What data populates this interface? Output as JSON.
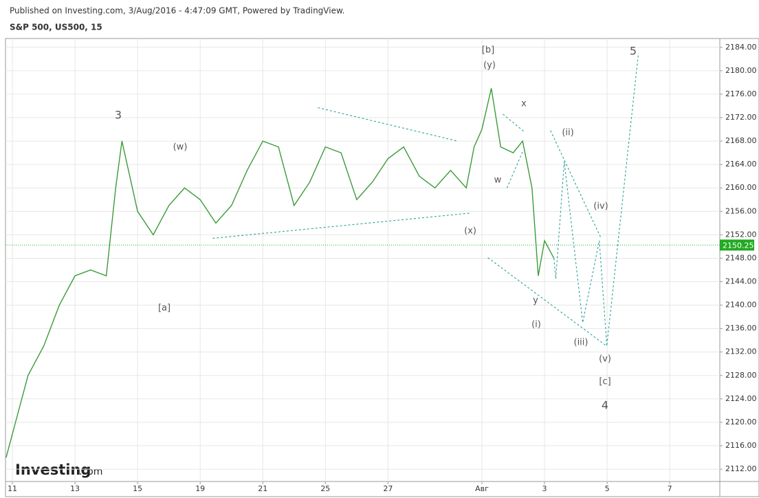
{
  "header": {
    "published": "Published on Investing.com, 3/Aug/2016 - 4:47:09 GMT, Powered by TradingView.",
    "symbol": "S&P 500, US500, 15",
    "logo": "Investing",
    "logo_suffix": ".com"
  },
  "chart_data": {
    "type": "line",
    "x": [
      -0.2,
      0,
      0.5,
      1,
      1.5,
      2,
      2.5,
      3,
      3.3,
      3.5,
      4,
      4.5,
      5,
      5.5,
      6,
      6.5,
      7,
      7.5,
      8,
      8.5,
      9,
      9.5,
      10,
      10.5,
      11,
      11.5,
      12,
      12.5,
      13,
      13.5,
      14,
      14.5,
      14.75,
      15,
      15.3,
      15.6,
      16,
      16.3,
      16.6,
      16.8,
      17,
      17.2,
      17.3
    ],
    "series": [
      {
        "color": "#3a9a3a",
        "values": [
          2114,
          2118,
          2128,
          2133,
          2140,
          2145,
          2146,
          2145,
          2160,
          2168,
          2156,
          2152,
          2157,
          2160,
          2158,
          2154,
          2157,
          2163,
          2168,
          2167,
          2157,
          2161,
          2167,
          2166,
          2158,
          2161,
          2165,
          2167,
          2162,
          2160,
          2163,
          2160,
          2167,
          2170,
          2177,
          2167,
          2166,
          2168,
          2160,
          2145,
          2151,
          2149,
          2148
        ]
      }
    ],
    "last_price": 2150.25,
    "last_price_color": "#22aa22",
    "projections": [
      {
        "x": [
          17.3,
          17.36,
          17.63,
          18.22,
          18.75,
          18.99,
          20.0
        ],
        "y": [
          2148,
          2144.5,
          2164.5,
          2137,
          2151,
          2133,
          2183
        ]
      },
      {
        "x": [
          9.76,
          14.22
        ],
        "y": [
          2173.7,
          2168.0
        ]
      },
      {
        "x": [
          6.4,
          14.62
        ],
        "y": [
          2151.4,
          2155.7
        ]
      },
      {
        "x": [
          15.67,
          16.35
        ],
        "y": [
          2172.6,
          2169.6
        ]
      },
      {
        "x": [
          15.8,
          16.31
        ],
        "y": [
          2160.0,
          2166.3
        ]
      },
      {
        "x": [
          15.19,
          18.99
        ],
        "y": [
          2148.1,
          2133.0
        ]
      },
      {
        "x": [
          17.19,
          18.79
        ],
        "y": [
          2169.8,
          2151.6
        ]
      }
    ],
    "projection_color": "#2aa198",
    "annotations": [
      "3",
      "(w)",
      "[a]",
      "[b]",
      "(y)",
      "x",
      "w",
      "(x)",
      "y",
      "(i)",
      "(ii)",
      "(iv)",
      "(iii)",
      "(v)",
      "[c]",
      "4",
      "5"
    ],
    "xlim": [
      -0.22,
      22.6
    ],
    "xticks": [
      {
        "value": 0,
        "label": "11"
      },
      {
        "value": 2,
        "label": "13"
      },
      {
        "value": 4,
        "label": "15"
      },
      {
        "value": 6,
        "label": "19"
      },
      {
        "value": 8,
        "label": "21"
      },
      {
        "value": 10,
        "label": "25"
      },
      {
        "value": 12,
        "label": "27"
      },
      {
        "value": 15,
        "label": "Авг"
      },
      {
        "value": 17,
        "label": "3"
      },
      {
        "value": 19,
        "label": "5"
      },
      {
        "value": 21,
        "label": "7"
      }
    ],
    "ylim": [
      2109.9,
      2185.5
    ],
    "yticks": [
      {
        "value": 2112,
        "label": "2112.00"
      },
      {
        "value": 2116,
        "label": "2116.00"
      },
      {
        "value": 2120,
        "label": "2120.00"
      },
      {
        "value": 2124,
        "label": "2124.00"
      },
      {
        "value": 2128,
        "label": "2128.00"
      },
      {
        "value": 2132,
        "label": "2132.00"
      },
      {
        "value": 2136,
        "label": "2136.00"
      },
      {
        "value": 2140,
        "label": "2140.00"
      },
      {
        "value": 2144,
        "label": "2144.00"
      },
      {
        "value": 2148,
        "label": "2148.00"
      },
      {
        "value": 2152,
        "label": "2152.00"
      },
      {
        "value": 2156,
        "label": "2156.00"
      },
      {
        "value": 2160,
        "label": "2160.00"
      },
      {
        "value": 2164,
        "label": "2164.00"
      },
      {
        "value": 2168,
        "label": "2168.00"
      },
      {
        "value": 2172,
        "label": "2172.00"
      },
      {
        "value": 2176,
        "label": "2176.00"
      },
      {
        "value": 2180,
        "label": "2180.00"
      },
      {
        "value": 2184,
        "label": "2184.00"
      }
    ],
    "grid": true
  }
}
